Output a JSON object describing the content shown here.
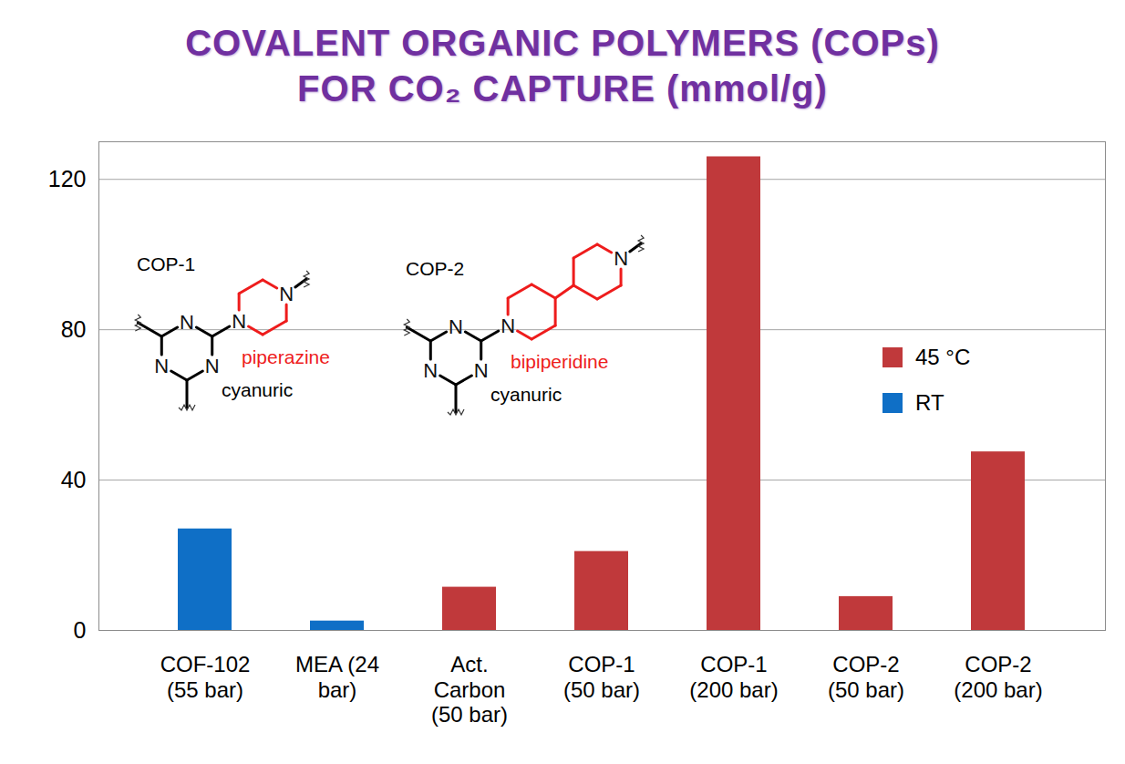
{
  "chart_data": {
    "type": "bar",
    "title": [
      "COVALENT ORGANIC POLYMERS (COPs)",
      "FOR CO₂ CAPTURE (mmol/g)"
    ],
    "categories": [
      "COF-102\n(55 bar)",
      "MEA (24\nbar)",
      "Act.\nCarbon\n(50 bar)",
      "COP-1\n(50 bar)",
      "COP-1\n(200 bar)",
      "COP-2\n(50 bar)",
      "COP-2\n(200 bar)"
    ],
    "series": [
      {
        "name": "45 °C",
        "color": "#c0393b",
        "values": [
          null,
          null,
          11.5,
          21,
          126,
          9,
          47.5
        ]
      },
      {
        "name": "RT",
        "color": "#0f6fc6",
        "values": [
          27,
          2.5,
          null,
          null,
          null,
          null,
          null
        ]
      }
    ],
    "ylim": [
      0,
      130
    ],
    "yticks": [
      0,
      40,
      80,
      120
    ],
    "grid": true,
    "legend": "top-right",
    "annotations": [
      {
        "text": "COP-1",
        "linker": "piperazine",
        "core": "cyanuric",
        "atom": "N"
      },
      {
        "text": "COP-2",
        "linker": "bipiperidine",
        "core": "cyanuric",
        "atom": "N"
      }
    ]
  }
}
